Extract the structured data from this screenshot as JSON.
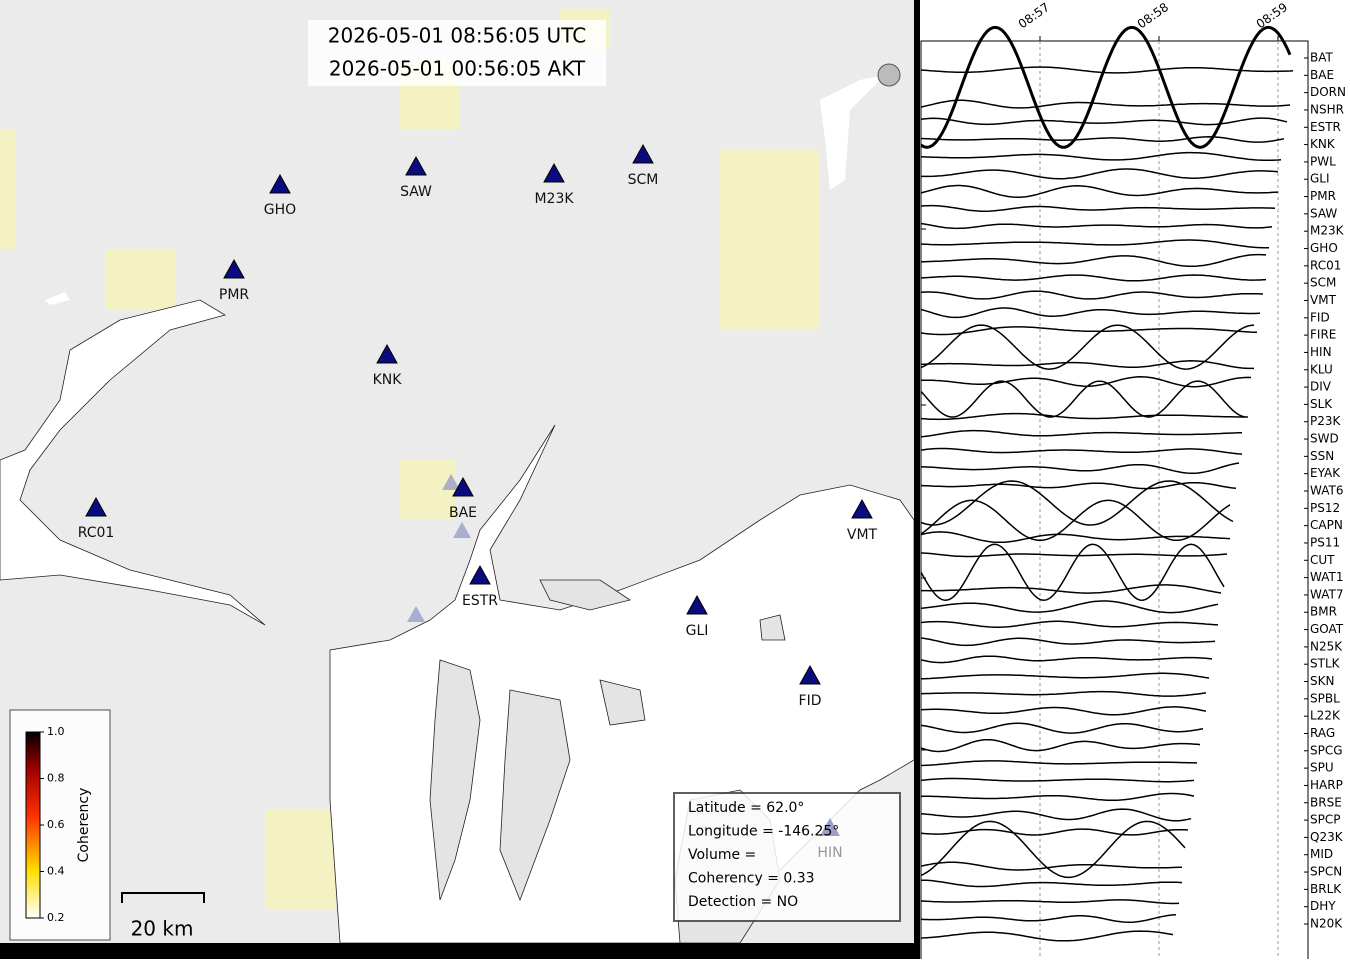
{
  "header": {
    "utc": "2026-05-01 08:56:05 UTC",
    "akt": "2026-05-01 00:56:05 AKT"
  },
  "map": {
    "stations": [
      "GHO",
      "SAW",
      "M23K",
      "SCM",
      "PMR",
      "KNK",
      "RC01",
      "BAE",
      "ESTR",
      "GLI",
      "VMT",
      "FID",
      "HIN"
    ]
  },
  "colorbar": {
    "label": "Coherency",
    "ticks": [
      "1.0",
      "0.8",
      "0.6",
      "0.4",
      "0.2"
    ]
  },
  "scale_bar": "20 km",
  "info": [
    "Latitude = 62.0°",
    "Longitude = -146.25°",
    "Volume =",
    "Coherency = 0.33",
    "Detection = NO"
  ],
  "seismogram": {
    "time_ticks": [
      "08:57",
      "08:58",
      "08:59"
    ],
    "stations": [
      "BAT",
      "BAE",
      "DORN",
      "NSHR",
      "ESTR",
      "KNK",
      "PWL",
      "GLI",
      "PMR",
      "SAW",
      "M23K",
      "GHO",
      "RC01",
      "SCM",
      "VMT",
      "FID",
      "FIRE",
      "HIN",
      "KLU",
      "DIV",
      "SLK",
      "P23K",
      "SWD",
      "SSN",
      "EYAK",
      "WAT6",
      "PS12",
      "CAPN",
      "PS11",
      "CUT",
      "WAT1",
      "WAT7",
      "BMR",
      "GOAT",
      "N25K",
      "STLK",
      "SKN",
      "SPBL",
      "L22K",
      "RAG",
      "SPCG",
      "SPU",
      "HARP",
      "BRSE",
      "SPCP",
      "Q23K",
      "MID",
      "SPCN",
      "BRLK",
      "DHY",
      "N20K"
    ]
  }
}
